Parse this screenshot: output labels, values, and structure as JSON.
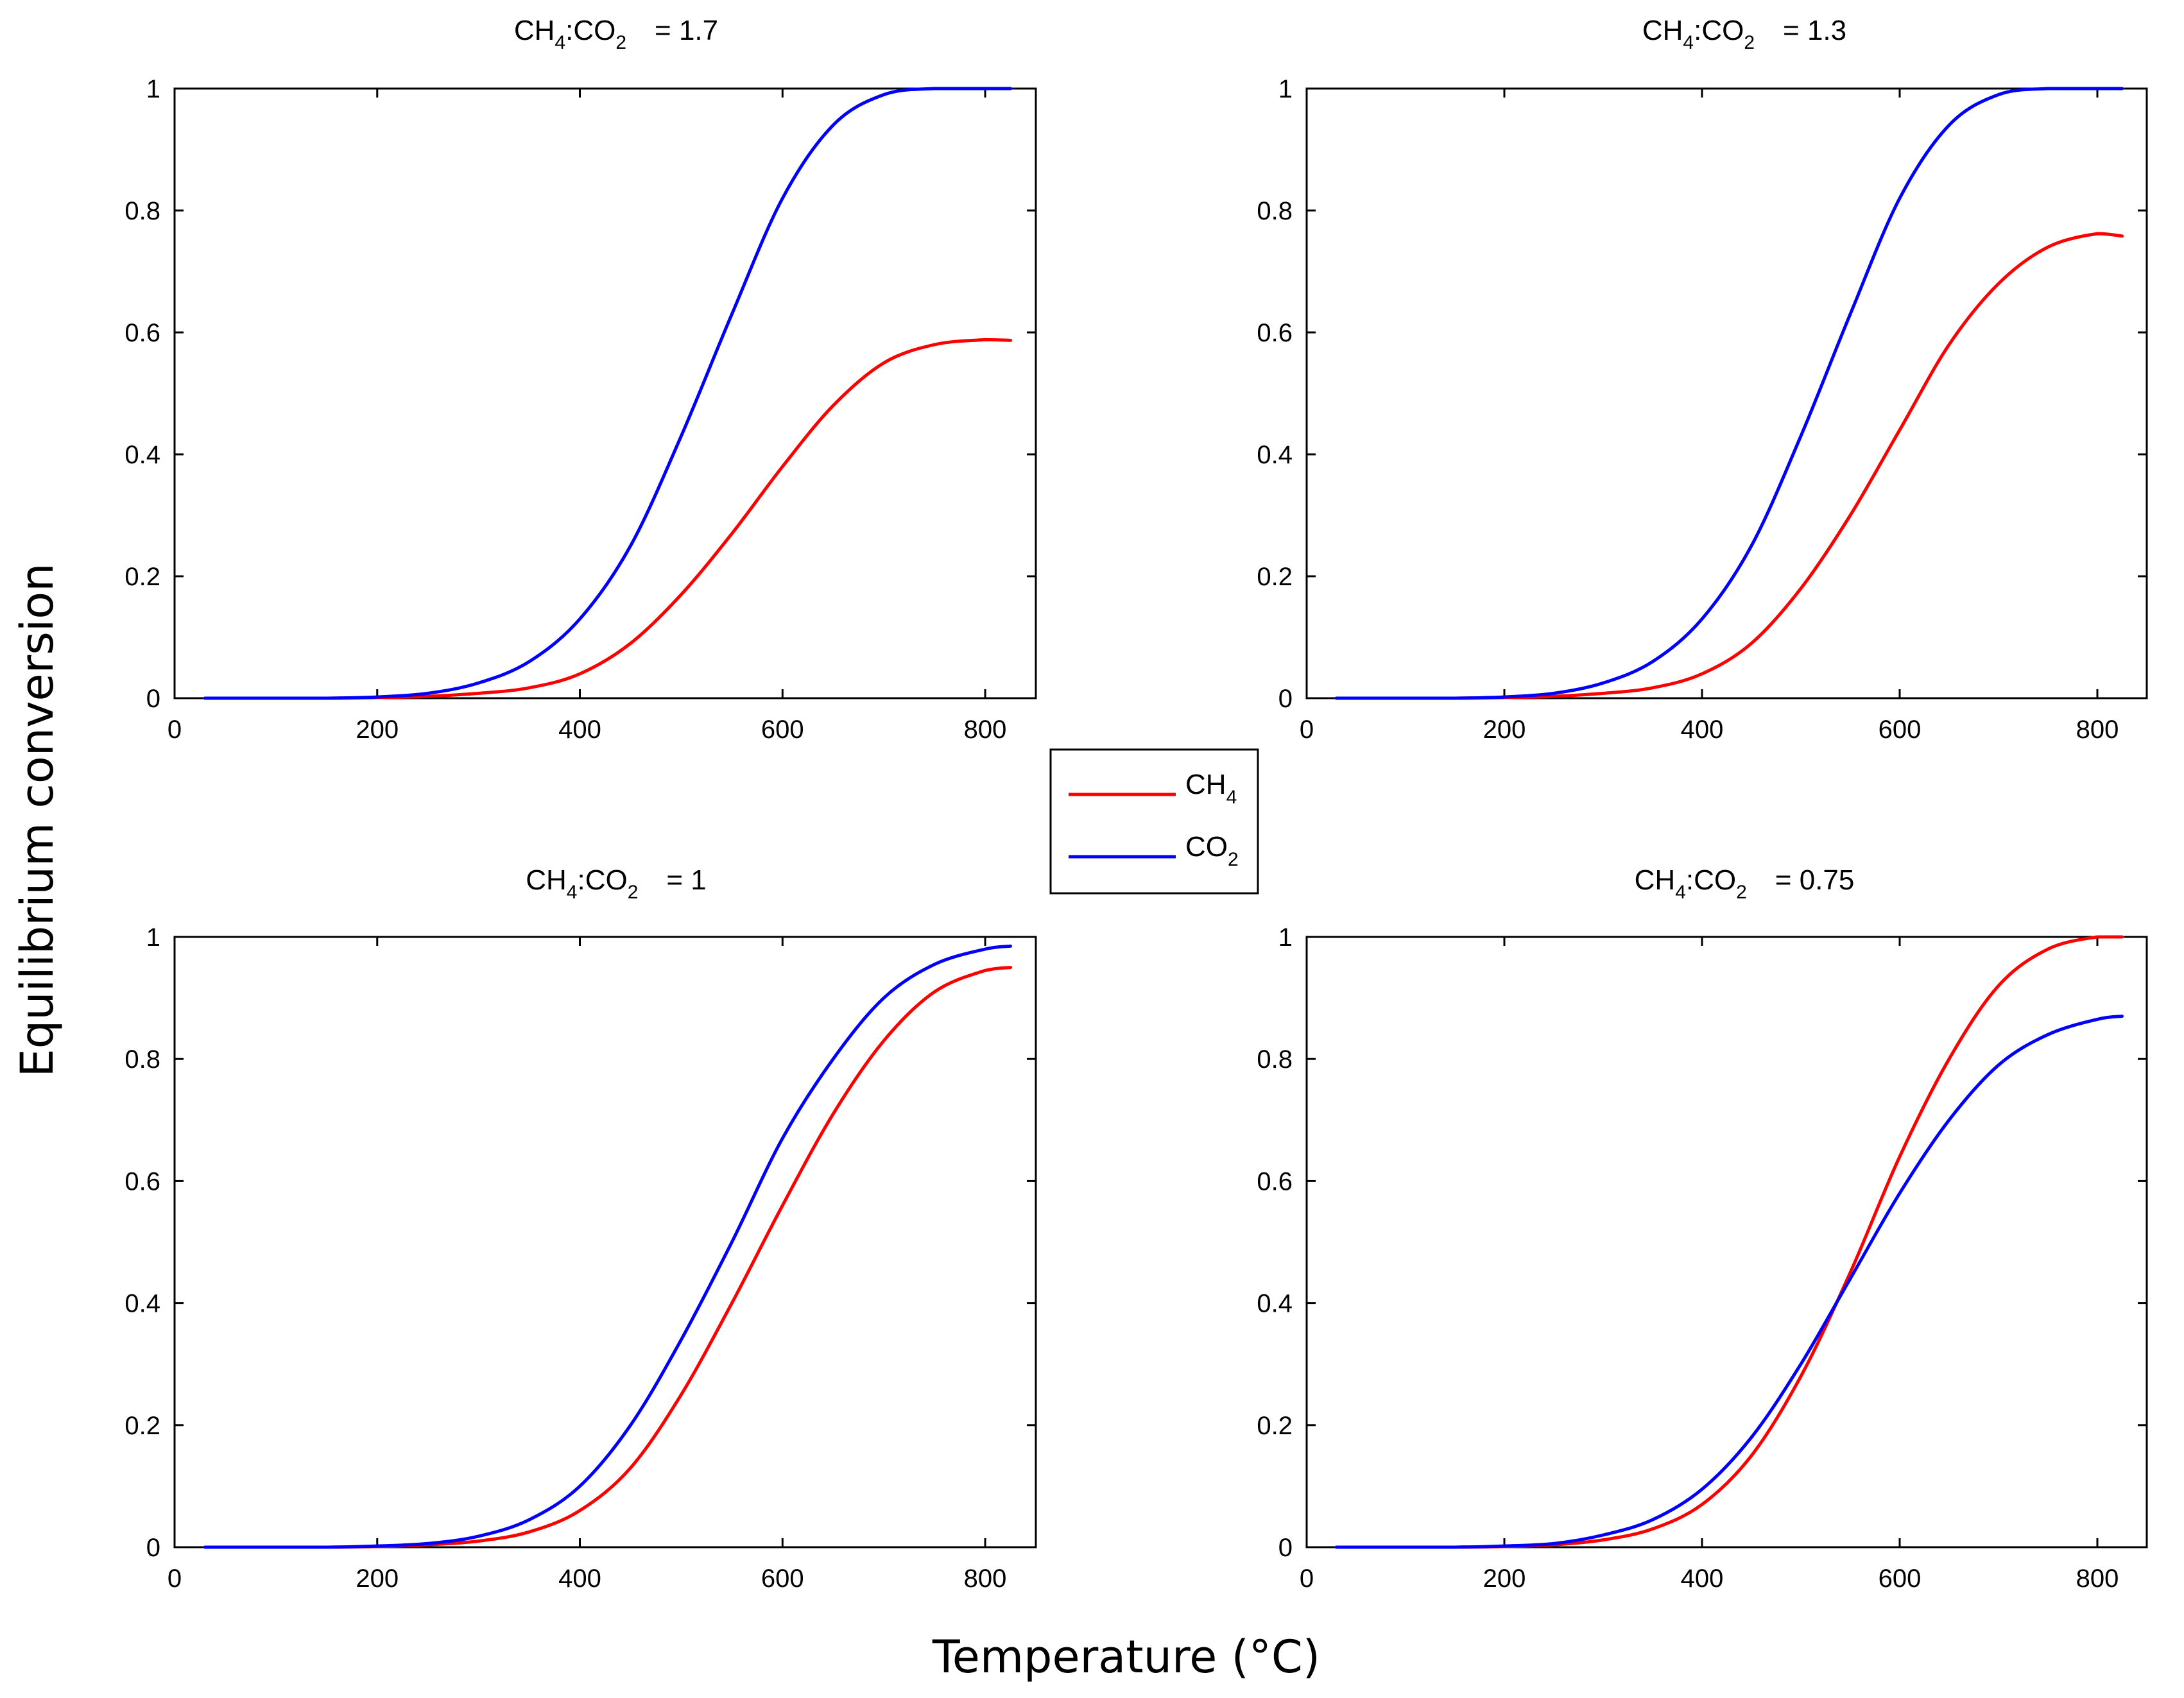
{
  "figure": {
    "xlabel": "Temperature (°C)",
    "ylabel": "Equilibrium conversion"
  },
  "legend": [
    {
      "label": "CH",
      "sub": "4",
      "color": "#ff0000"
    },
    {
      "label": "CO",
      "sub": "2",
      "color": "#0000ff"
    }
  ],
  "colors": {
    "ch4": "#ff0000",
    "co2": "#0000ff",
    "axes": "#000000"
  },
  "chart_data": [
    {
      "type": "line",
      "title": {
        "prefix": "CH",
        "sub1": "4",
        "mid": ":CO",
        "sub2": "2",
        "value": "= 1.7"
      },
      "xlim": [
        0,
        850
      ],
      "ylim": [
        0,
        1
      ],
      "xticks": [
        "0",
        "200",
        "400",
        "600",
        "800"
      ],
      "yticks": [
        "0",
        "0.2",
        "0.4",
        "0.6",
        "0.8",
        "1"
      ],
      "x": [
        30,
        100,
        150,
        200,
        250,
        300,
        350,
        400,
        450,
        500,
        550,
        600,
        650,
        700,
        750,
        800,
        825
      ],
      "series": [
        {
          "name": "CH4",
          "color": "#ff0000",
          "values": [
            0,
            0,
            0,
            0.001,
            0.003,
            0.008,
            0.017,
            0.04,
            0.09,
            0.17,
            0.27,
            0.38,
            0.48,
            0.55,
            0.58,
            0.588,
            0.587
          ]
        },
        {
          "name": "CO2",
          "color": "#0000ff",
          "values": [
            0,
            0,
            0,
            0.002,
            0.008,
            0.025,
            0.06,
            0.13,
            0.25,
            0.43,
            0.63,
            0.82,
            0.94,
            0.99,
            1.0,
            1.0,
            1.0
          ]
        }
      ]
    },
    {
      "type": "line",
      "title": {
        "prefix": "CH",
        "sub1": "4",
        "mid": ":CO",
        "sub2": "2",
        "value": "= 1.3"
      },
      "xlim": [
        0,
        850
      ],
      "ylim": [
        0,
        1
      ],
      "xticks": [
        "0",
        "200",
        "400",
        "600",
        "800"
      ],
      "yticks": [
        "0",
        "0.2",
        "0.4",
        "0.6",
        "0.8",
        "1"
      ],
      "x": [
        30,
        100,
        150,
        200,
        250,
        300,
        350,
        400,
        450,
        500,
        550,
        600,
        650,
        700,
        750,
        800,
        825
      ],
      "series": [
        {
          "name": "CH4",
          "color": "#ff0000",
          "values": [
            0,
            0,
            0,
            0.001,
            0.003,
            0.008,
            0.017,
            0.04,
            0.09,
            0.18,
            0.3,
            0.44,
            0.58,
            0.68,
            0.74,
            0.762,
            0.758
          ]
        },
        {
          "name": "CO2",
          "color": "#0000ff",
          "values": [
            0,
            0,
            0,
            0.002,
            0.008,
            0.025,
            0.06,
            0.13,
            0.25,
            0.43,
            0.63,
            0.82,
            0.94,
            0.99,
            1.0,
            1.0,
            1.0
          ]
        }
      ]
    },
    {
      "type": "line",
      "title": {
        "prefix": "CH",
        "sub1": "4",
        "mid": ":CO",
        "sub2": "2",
        "value": "= 1"
      },
      "xlim": [
        0,
        850
      ],
      "ylim": [
        0,
        1
      ],
      "xticks": [
        "0",
        "200",
        "400",
        "600",
        "800"
      ],
      "yticks": [
        "0",
        "0.2",
        "0.4",
        "0.6",
        "0.8",
        "1"
      ],
      "x": [
        30,
        100,
        150,
        200,
        250,
        300,
        350,
        400,
        450,
        500,
        550,
        600,
        650,
        700,
        750,
        800,
        825
      ],
      "series": [
        {
          "name": "CH4",
          "color": "#ff0000",
          "values": [
            0,
            0,
            0,
            0.001,
            0.004,
            0.01,
            0.025,
            0.06,
            0.13,
            0.25,
            0.4,
            0.56,
            0.71,
            0.83,
            0.91,
            0.945,
            0.95
          ]
        },
        {
          "name": "CO2",
          "color": "#0000ff",
          "values": [
            0,
            0,
            0,
            0.002,
            0.006,
            0.018,
            0.045,
            0.1,
            0.2,
            0.34,
            0.5,
            0.67,
            0.8,
            0.9,
            0.955,
            0.98,
            0.985
          ]
        }
      ]
    },
    {
      "type": "line",
      "title": {
        "prefix": "CH",
        "sub1": "4",
        "mid": ":CO",
        "sub2": "2",
        "value": "= 0.75"
      },
      "xlim": [
        0,
        850
      ],
      "ylim": [
        0,
        1
      ],
      "xticks": [
        "0",
        "200",
        "400",
        "600",
        "800"
      ],
      "yticks": [
        "0",
        "0.2",
        "0.4",
        "0.6",
        "0.8",
        "1"
      ],
      "x": [
        30,
        100,
        150,
        200,
        250,
        300,
        350,
        400,
        450,
        500,
        550,
        600,
        650,
        700,
        750,
        800,
        825
      ],
      "series": [
        {
          "name": "CH4",
          "color": "#ff0000",
          "values": [
            0,
            0,
            0,
            0.001,
            0.004,
            0.012,
            0.03,
            0.07,
            0.15,
            0.28,
            0.45,
            0.64,
            0.8,
            0.92,
            0.98,
            1.0,
            1.0
          ]
        },
        {
          "name": "CO2",
          "color": "#0000ff",
          "values": [
            0,
            0,
            0,
            0.002,
            0.006,
            0.02,
            0.045,
            0.095,
            0.18,
            0.3,
            0.44,
            0.58,
            0.7,
            0.79,
            0.84,
            0.865,
            0.87
          ]
        }
      ]
    }
  ]
}
